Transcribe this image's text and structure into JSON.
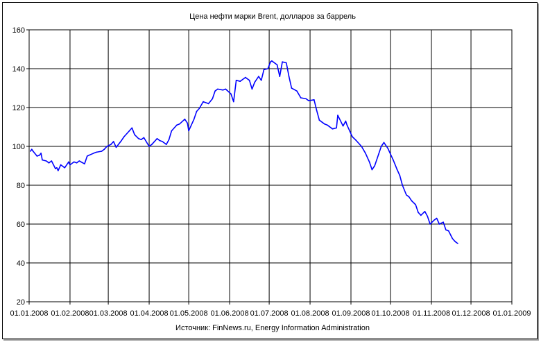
{
  "chart_data": {
    "type": "line",
    "title": "Цена нефти марки Brent, долларов за баррель",
    "source": "Источник: FinNews.ru, Energy Information Administration",
    "xlabel": "",
    "ylabel": "",
    "ylim": [
      20,
      160
    ],
    "yticks": [
      20,
      40,
      60,
      80,
      100,
      120,
      140,
      160
    ],
    "xlim": [
      "2008-01-01",
      "2009-01-01"
    ],
    "xticks": [
      "01.01.2008",
      "01.02.2008",
      "01.03.2008",
      "01.04.2008",
      "01.05.2008",
      "01.06.2008",
      "01.07.2008",
      "01.08.2008",
      "01.09.2008",
      "01.10.2008",
      "01.11.2008",
      "01.12.2008",
      "01.01.2009"
    ],
    "grid": true,
    "line_color": "#0000ff",
    "series": [
      {
        "points": [
          [
            "2008-01-02",
            97.5
          ],
          [
            "2008-01-03",
            98.5
          ],
          [
            "2008-01-04",
            97.5
          ],
          [
            "2008-01-07",
            95.0
          ],
          [
            "2008-01-09",
            95.5
          ],
          [
            "2008-01-10",
            96.5
          ],
          [
            "2008-01-11",
            93.0
          ],
          [
            "2008-01-14",
            92.5
          ],
          [
            "2008-01-16",
            91.5
          ],
          [
            "2008-01-18",
            92.5
          ],
          [
            "2008-01-21",
            88.5
          ],
          [
            "2008-01-22",
            89.0
          ],
          [
            "2008-01-23",
            87.5
          ],
          [
            "2008-01-25",
            90.5
          ],
          [
            "2008-01-28",
            89.0
          ],
          [
            "2008-01-31",
            92.0
          ],
          [
            "2008-02-01",
            90.5
          ],
          [
            "2008-02-04",
            92.0
          ],
          [
            "2008-02-06",
            91.5
          ],
          [
            "2008-02-08",
            92.5
          ],
          [
            "2008-02-12",
            91.0
          ],
          [
            "2008-02-14",
            95.0
          ],
          [
            "2008-02-19",
            96.5
          ],
          [
            "2008-02-21",
            97.0
          ],
          [
            "2008-02-25",
            97.5
          ],
          [
            "2008-02-27",
            98.5
          ],
          [
            "2008-02-29",
            100.0
          ],
          [
            "2008-03-03",
            101.0
          ],
          [
            "2008-03-05",
            102.5
          ],
          [
            "2008-03-07",
            99.5
          ],
          [
            "2008-03-11",
            103.0
          ],
          [
            "2008-03-13",
            105.0
          ],
          [
            "2008-03-17",
            108.0
          ],
          [
            "2008-03-19",
            109.5
          ],
          [
            "2008-03-21",
            106.0
          ],
          [
            "2008-03-24",
            104.0
          ],
          [
            "2008-03-26",
            103.5
          ],
          [
            "2008-03-28",
            104.5
          ],
          [
            "2008-04-01",
            100.0
          ],
          [
            "2008-04-03",
            101.0
          ],
          [
            "2008-04-07",
            104.0
          ],
          [
            "2008-04-09",
            103.0
          ],
          [
            "2008-04-11",
            102.5
          ],
          [
            "2008-04-14",
            101.0
          ],
          [
            "2008-04-16",
            103.5
          ],
          [
            "2008-04-18",
            108.0
          ],
          [
            "2008-04-22",
            111.0
          ],
          [
            "2008-04-24",
            111.5
          ],
          [
            "2008-04-28",
            114.0
          ],
          [
            "2008-04-30",
            112.0
          ],
          [
            "2008-05-01",
            108.0
          ],
          [
            "2008-05-05",
            114.0
          ],
          [
            "2008-05-07",
            118.0
          ],
          [
            "2008-05-09",
            119.5
          ],
          [
            "2008-05-12",
            123.0
          ],
          [
            "2008-05-14",
            122.5
          ],
          [
            "2008-05-16",
            122.0
          ],
          [
            "2008-05-19",
            124.5
          ],
          [
            "2008-05-21",
            128.5
          ],
          [
            "2008-05-23",
            129.5
          ],
          [
            "2008-05-27",
            129.0
          ],
          [
            "2008-05-29",
            129.5
          ],
          [
            "2008-06-02",
            127.0
          ],
          [
            "2008-06-04",
            123.0
          ],
          [
            "2008-06-06",
            134.0
          ],
          [
            "2008-06-09",
            133.5
          ],
          [
            "2008-06-11",
            134.5
          ],
          [
            "2008-06-13",
            135.5
          ],
          [
            "2008-06-16",
            134.0
          ],
          [
            "2008-06-18",
            129.5
          ],
          [
            "2008-06-20",
            133.0
          ],
          [
            "2008-06-23",
            136.0
          ],
          [
            "2008-06-25",
            134.0
          ],
          [
            "2008-06-27",
            139.5
          ],
          [
            "2008-06-30",
            140.0
          ],
          [
            "2008-07-02",
            143.5
          ],
          [
            "2008-07-03",
            144.0
          ],
          [
            "2008-07-07",
            142.0
          ],
          [
            "2008-07-09",
            136.0
          ],
          [
            "2008-07-11",
            143.5
          ],
          [
            "2008-07-14",
            143.0
          ],
          [
            "2008-07-16",
            136.0
          ],
          [
            "2008-07-18",
            130.0
          ],
          [
            "2008-07-22",
            128.5
          ],
          [
            "2008-07-25",
            125.0
          ],
          [
            "2008-07-29",
            124.5
          ],
          [
            "2008-07-31",
            123.5
          ],
          [
            "2008-08-04",
            124.0
          ],
          [
            "2008-08-06",
            118.5
          ],
          [
            "2008-08-08",
            113.5
          ],
          [
            "2008-08-12",
            111.5
          ],
          [
            "2008-08-14",
            111.0
          ],
          [
            "2008-08-18",
            109.0
          ],
          [
            "2008-08-21",
            109.5
          ],
          [
            "2008-08-22",
            116.0
          ],
          [
            "2008-08-26",
            110.5
          ],
          [
            "2008-08-28",
            113.0
          ],
          [
            "2008-08-29",
            111.0
          ],
          [
            "2008-09-02",
            105.0
          ],
          [
            "2008-09-05",
            103.0
          ],
          [
            "2008-09-09",
            100.0
          ],
          [
            "2008-09-12",
            96.5
          ],
          [
            "2008-09-15",
            92.0
          ],
          [
            "2008-09-17",
            88.0
          ],
          [
            "2008-09-19",
            90.0
          ],
          [
            "2008-09-22",
            96.0
          ],
          [
            "2008-09-24",
            100.0
          ],
          [
            "2008-09-26",
            102.0
          ],
          [
            "2008-09-29",
            99.0
          ],
          [
            "2008-10-01",
            96.0
          ],
          [
            "2008-10-03",
            93.0
          ],
          [
            "2008-10-06",
            88.0
          ],
          [
            "2008-10-08",
            85.0
          ],
          [
            "2008-10-10",
            80.0
          ],
          [
            "2008-10-13",
            75.0
          ],
          [
            "2008-10-15",
            74.0
          ],
          [
            "2008-10-17",
            72.0
          ],
          [
            "2008-10-20",
            70.0
          ],
          [
            "2008-10-22",
            66.0
          ],
          [
            "2008-10-24",
            64.5
          ],
          [
            "2008-10-27",
            66.5
          ],
          [
            "2008-10-29",
            64.0
          ],
          [
            "2008-10-31",
            60.0
          ],
          [
            "2008-11-03",
            62.0
          ],
          [
            "2008-11-05",
            63.0
          ],
          [
            "2008-11-07",
            60.0
          ],
          [
            "2008-11-10",
            61.0
          ],
          [
            "2008-11-12",
            57.0
          ],
          [
            "2008-11-14",
            56.5
          ],
          [
            "2008-11-17",
            52.5
          ],
          [
            "2008-11-19",
            51.0
          ],
          [
            "2008-11-21",
            50.0
          ]
        ]
      }
    ]
  }
}
